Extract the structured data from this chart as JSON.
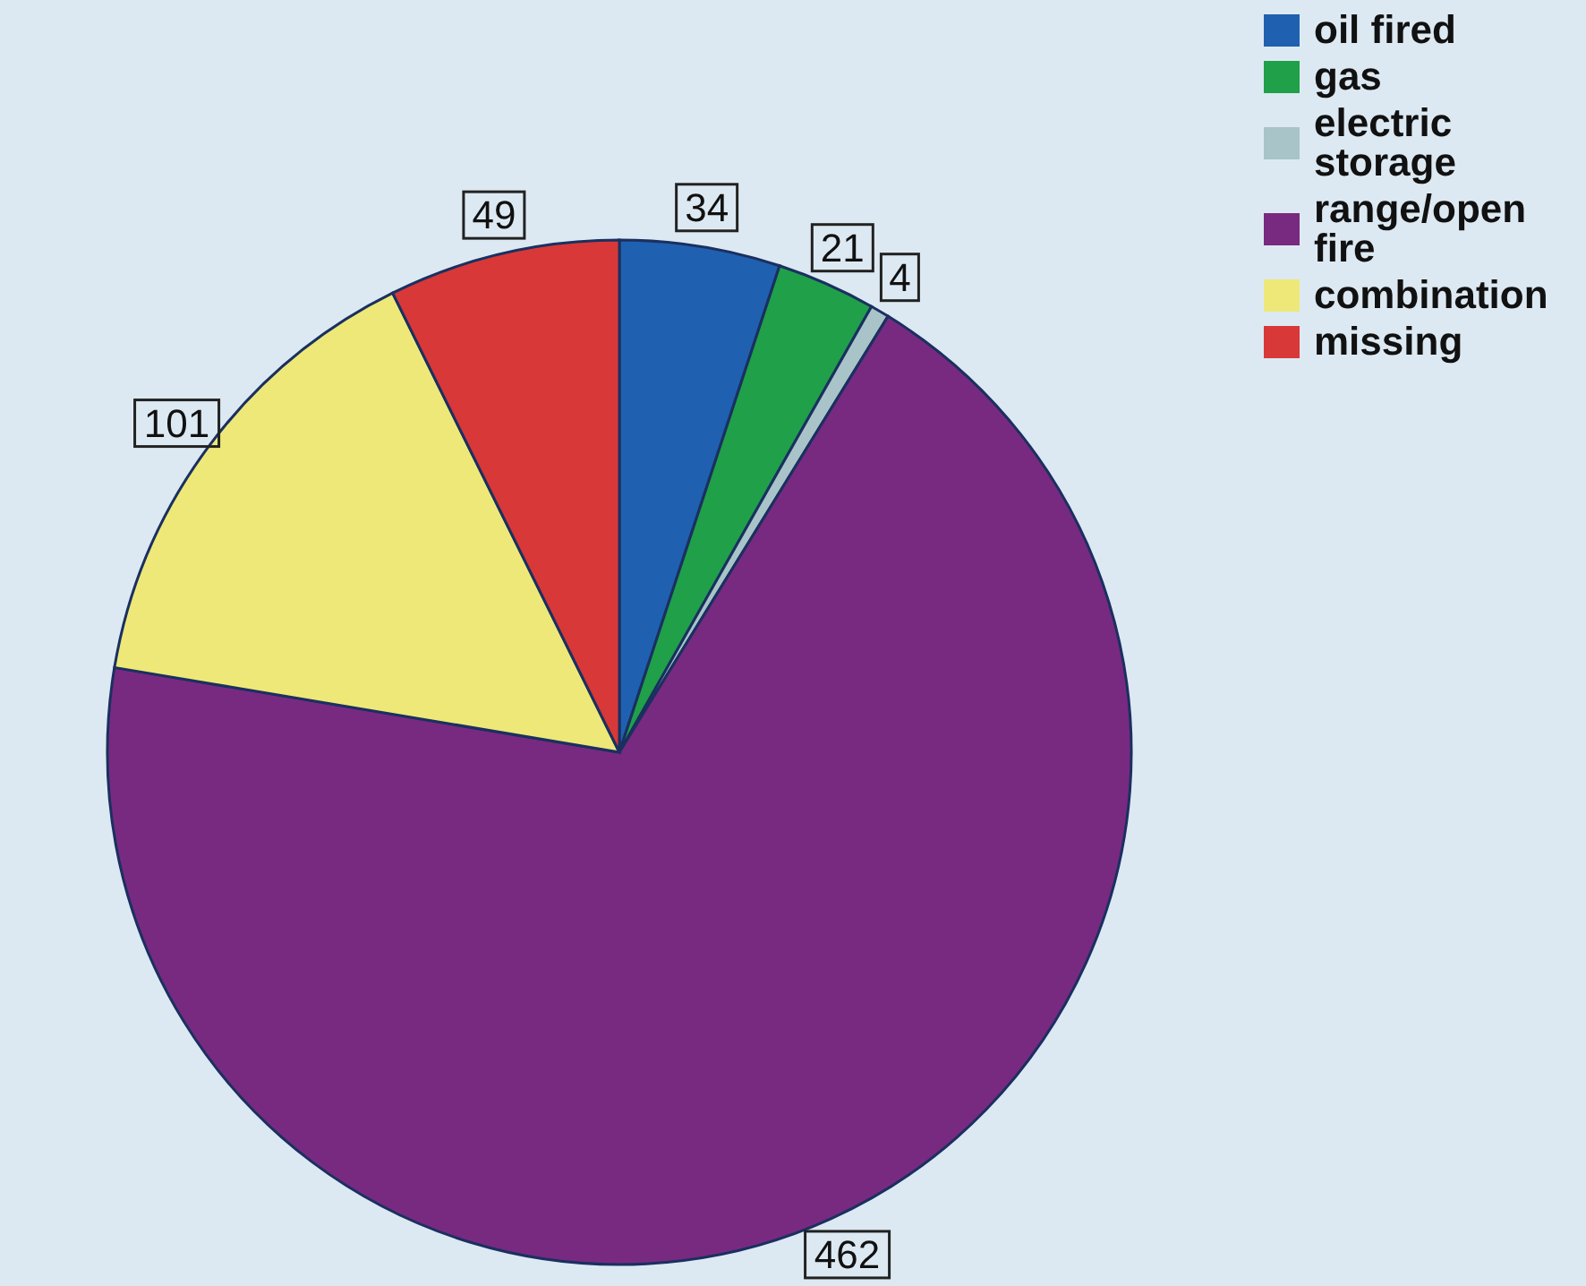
{
  "chart_data": {
    "type": "pie",
    "categories": [
      "oil fired",
      "gas",
      "electric storage",
      "range/open fire",
      "combination",
      "missing"
    ],
    "values": [
      34,
      21,
      4,
      462,
      101,
      49
    ],
    "colors": [
      "#2060b0",
      "#20a048",
      "#a8c4c8",
      "#782a80",
      "#eee878",
      "#d83838"
    ],
    "data_labels": true,
    "legend": "top right"
  }
}
